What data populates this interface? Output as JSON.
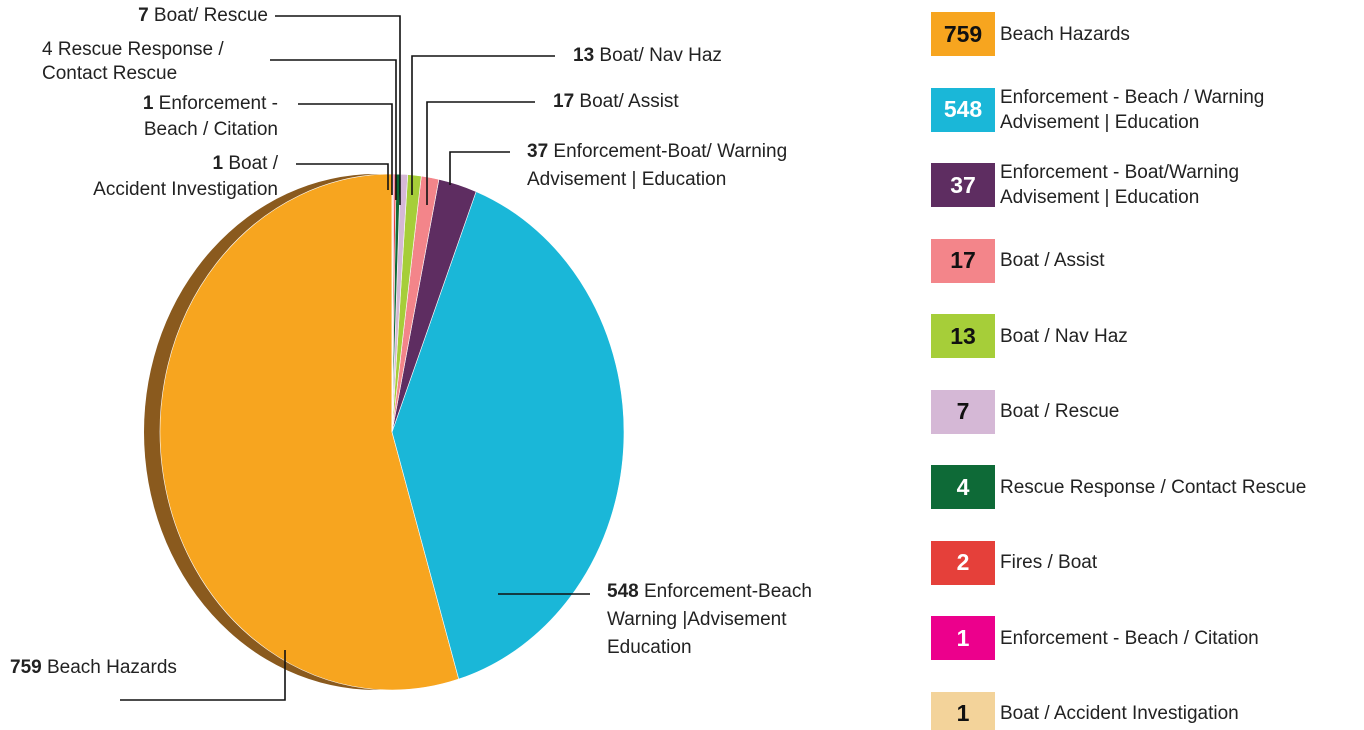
{
  "chart_data": {
    "type": "pie",
    "categories": [
      "Beach Hazards",
      "Enforcement - Beach / Warning Advisement | Education",
      "Enforcement - Boat/Warning Advisement | Education",
      "Boat / Assist",
      "Boat / Nav Haz",
      "Boat / Rescue",
      "Rescue Response / Contact Rescue",
      "Fires / Boat",
      "Enforcement - Beach / Citation",
      "Boat / Accident Investigation"
    ],
    "values": [
      759,
      548,
      37,
      17,
      13,
      7,
      4,
      2,
      1,
      1
    ],
    "colors": [
      "#f7a51f",
      "#1ab7d8",
      "#5e2d61",
      "#f3858a",
      "#a6ce39",
      "#d5b8d6",
      "#0e6a37",
      "#e5403a",
      "#ec008c",
      "#f3d39a"
    ],
    "callout_labels": [
      [
        "Beach Hazards"
      ],
      [
        "Enforcement-Beach",
        "Warning |Advisement",
        "Education"
      ],
      [
        "Enforcement-Boat/ Warning",
        "Advisement | Education"
      ],
      [
        "Boat/ Assist"
      ],
      [
        "Boat/ Nav Haz"
      ],
      [
        "Boat/ Rescue"
      ],
      [
        "Rescue Response /",
        "Contact Rescue"
      ],
      null,
      [
        "Enforcement -",
        "Beach / Citation"
      ],
      [
        "Boat /",
        "Accident Investigation"
      ]
    ]
  }
}
